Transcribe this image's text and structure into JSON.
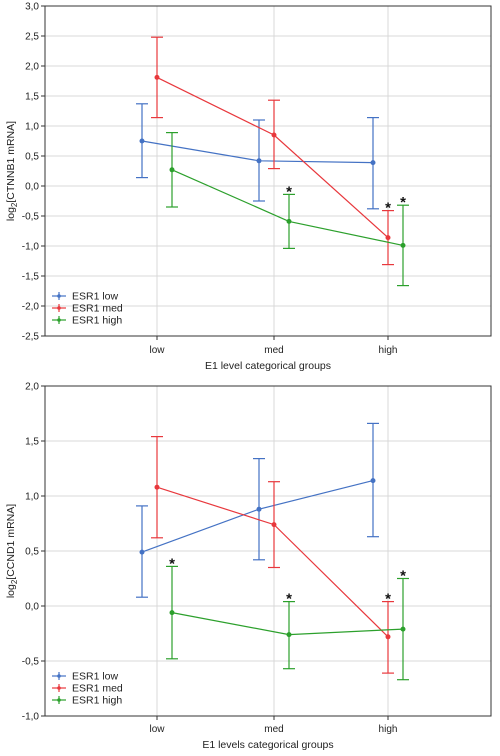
{
  "chart_data": [
    {
      "type": "line",
      "xlabel": "E1 level categorical groups",
      "ylabel_main": "log",
      "ylabel_sub": "2",
      "ylabel_rest": "[CTNNB1 mRNA]",
      "categories": [
        "low",
        "med",
        "high"
      ],
      "ylim": [
        -2.5,
        3.0
      ],
      "yticks": [
        "3,0",
        "2,5",
        "2,0",
        "1,5",
        "1,0",
        "0,5",
        "0,0",
        "-0,5",
        "-1,0",
        "-1,5",
        "-2,0",
        "-2,5"
      ],
      "ytick_values": [
        3.0,
        2.5,
        2.0,
        1.5,
        1.0,
        0.5,
        0.0,
        -0.5,
        -1.0,
        -1.5,
        -2.0,
        -2.5
      ],
      "series": [
        {
          "name": "ESR1 low",
          "color": "#4472c4",
          "values": [
            0.75,
            0.42,
            0.39
          ],
          "lower": [
            0.14,
            -0.25,
            -0.38
          ],
          "upper": [
            1.37,
            1.1,
            1.14
          ]
        },
        {
          "name": "ESR1 med",
          "color": "#e8383d",
          "values": [
            1.81,
            0.85,
            -0.86
          ],
          "lower": [
            1.14,
            0.29,
            -1.31
          ],
          "upper": [
            2.48,
            1.43,
            -0.41
          ]
        },
        {
          "name": "ESR1 high",
          "color": "#2ca02c",
          "values": [
            0.27,
            -0.59,
            -0.99
          ],
          "lower": [
            -0.35,
            -1.04,
            -1.66
          ],
          "upper": [
            0.89,
            -0.14,
            -0.32
          ]
        }
      ],
      "annotations": [
        {
          "text": "*",
          "series": 2,
          "category": 1
        },
        {
          "text": "*",
          "series": 1,
          "category": 2
        },
        {
          "text": "*",
          "series": 2,
          "category": 2
        }
      ],
      "legend": "bottom-left",
      "grid": true
    },
    {
      "type": "line",
      "xlabel": "E1 levels categorical groups",
      "ylabel_main": "log",
      "ylabel_sub": "2",
      "ylabel_rest": "[CCND1 mRNA]",
      "categories": [
        "low",
        "med",
        "high"
      ],
      "ylim": [
        -1.0,
        2.0
      ],
      "yticks": [
        "2,0",
        "1,5",
        "1,0",
        "0,5",
        "0,0",
        "-0,5",
        "-1,0"
      ],
      "ytick_values": [
        2.0,
        1.5,
        1.0,
        0.5,
        0.0,
        -0.5,
        -1.0
      ],
      "series": [
        {
          "name": "ESR1 low",
          "color": "#4472c4",
          "values": [
            0.49,
            0.88,
            1.14
          ],
          "lower": [
            0.08,
            0.42,
            0.63
          ],
          "upper": [
            0.91,
            1.34,
            1.66
          ]
        },
        {
          "name": "ESR1 med",
          "color": "#e8383d",
          "values": [
            1.08,
            0.74,
            -0.28
          ],
          "lower": [
            0.62,
            0.35,
            -0.61
          ],
          "upper": [
            1.54,
            1.13,
            0.04
          ]
        },
        {
          "name": "ESR1 high",
          "color": "#2ca02c",
          "values": [
            -0.06,
            -0.26,
            -0.21
          ],
          "lower": [
            -0.48,
            -0.57,
            -0.67
          ],
          "upper": [
            0.36,
            0.04,
            0.25
          ]
        }
      ],
      "annotations": [
        {
          "text": "*",
          "series": 2,
          "category": 0
        },
        {
          "text": "*",
          "series": 2,
          "category": 1
        },
        {
          "text": "*",
          "series": 1,
          "category": 2
        },
        {
          "text": "*",
          "series": 2,
          "category": 2
        }
      ],
      "legend": "bottom-left",
      "grid": true
    }
  ]
}
